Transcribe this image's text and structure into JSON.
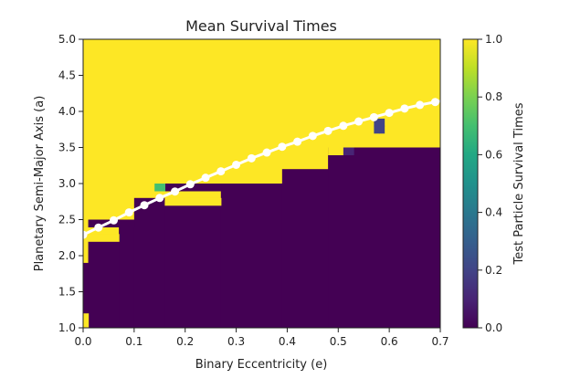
{
  "chart_data": {
    "type": "heatmap",
    "title": "Mean Survival Times",
    "xlabel": "Binary Eccentricity (e)",
    "ylabel": "Planetary Semi-Major Axis (a)",
    "xlim": [
      0.0,
      0.7
    ],
    "ylim": [
      1.0,
      5.0
    ],
    "x_ticks": [
      "0.0",
      "0.1",
      "0.2",
      "0.3",
      "0.4",
      "0.5",
      "0.6",
      "0.7"
    ],
    "y_ticks": [
      "1.0",
      "1.5",
      "2.0",
      "2.5",
      "3.0",
      "3.5",
      "4.0",
      "4.5",
      "5.0"
    ],
    "cell_de": 0.01,
    "cell_da": 0.1,
    "colorbar": {
      "label": "Test Particle Survival Times",
      "range": [
        0.0,
        1.0
      ],
      "ticks": [
        "0.0",
        "0.2",
        "0.4",
        "0.6",
        "0.8",
        "1.0"
      ],
      "colormap": "viridis"
    },
    "colors": {
      "stable": "#fde725",
      "unstable": "#440154",
      "curve": "#ffffff"
    },
    "grid": false,
    "stability_boundary": [
      {
        "e_min": 0.0,
        "e_max": 0.01,
        "a_boundary": 1.9
      },
      {
        "e_min": 0.01,
        "e_max": 0.07,
        "a_boundary": 2.2
      },
      {
        "e_min": 0.07,
        "e_max": 0.1,
        "a_boundary": 2.5
      },
      {
        "e_min": 0.1,
        "e_max": 0.16,
        "a_boundary": 2.7
      },
      {
        "e_min": 0.16,
        "e_max": 0.27,
        "a_boundary": 2.7
      },
      {
        "e_min": 0.27,
        "e_max": 0.39,
        "a_boundary": 3.0
      },
      {
        "e_min": 0.39,
        "e_max": 0.48,
        "a_boundary": 3.2
      },
      {
        "e_min": 0.48,
        "e_max": 0.7,
        "a_boundary": 3.5
      }
    ],
    "stable_patches": [
      {
        "e_min": 0.0,
        "e_max": 0.01,
        "a_min": 1.0,
        "a_max": 1.2,
        "value": 1.0
      },
      {
        "e_min": 0.16,
        "e_max": 0.27,
        "a_min": 2.7,
        "a_max": 2.8,
        "value": 1.0
      },
      {
        "e_min": 0.01,
        "e_max": 0.07,
        "a_min": 2.2,
        "a_max": 2.3,
        "value": 1.0
      },
      {
        "e_min": 0.48,
        "e_max": 0.51,
        "a_min": 3.4,
        "a_max": 3.5,
        "value": 1.0
      }
    ],
    "unstable_patches": [
      {
        "e_min": 0.01,
        "e_max": 0.1,
        "a_min": 2.4,
        "a_max": 2.5,
        "value": 0.0
      },
      {
        "e_min": 0.16,
        "e_max": 0.27,
        "a_min": 2.9,
        "a_max": 3.0,
        "value": 0.0
      },
      {
        "e_min": 0.1,
        "e_max": 0.16,
        "a_min": 2.7,
        "a_max": 2.8,
        "value": 0.0
      }
    ],
    "special_cells": [
      {
        "e": 0.14,
        "a": 2.9,
        "value": 0.7
      },
      {
        "e": 0.15,
        "a": 2.9,
        "value": 0.7
      },
      {
        "e": 0.51,
        "a": 3.4,
        "value": 0.1
      },
      {
        "e": 0.52,
        "a": 3.4,
        "value": 0.1
      },
      {
        "e": 0.57,
        "a": 3.8,
        "value": 0.15
      },
      {
        "e": 0.58,
        "a": 3.8,
        "value": 0.15
      },
      {
        "e": 0.57,
        "a": 3.7,
        "value": 0.15
      },
      {
        "e": 0.58,
        "a": 3.7,
        "value": 0.15
      }
    ],
    "curve_points": {
      "x": [
        0.0,
        0.03,
        0.06,
        0.09,
        0.12,
        0.15,
        0.18,
        0.21,
        0.24,
        0.27,
        0.3,
        0.33,
        0.36,
        0.39,
        0.42,
        0.45,
        0.48,
        0.51,
        0.54,
        0.57,
        0.6,
        0.63,
        0.66,
        0.69
      ],
      "y": [
        2.29,
        2.39,
        2.49,
        2.6,
        2.7,
        2.8,
        2.89,
        2.99,
        3.08,
        3.17,
        3.26,
        3.35,
        3.43,
        3.51,
        3.58,
        3.66,
        3.73,
        3.8,
        3.86,
        3.92,
        3.98,
        4.04,
        4.09,
        4.13
      ]
    }
  }
}
